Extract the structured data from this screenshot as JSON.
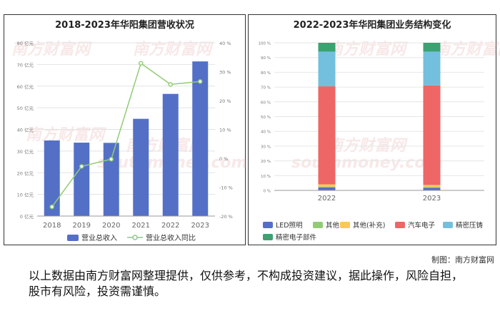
{
  "watermark": {
    "cn": "南方财富网",
    "en": "southmoney.com"
  },
  "credit": "制图：南方财富网",
  "disclaimer": "以上数据由南方财富网整理提供，仅供参考，不构成投资建议，据此操作，风险自担，股市有风险，投资需谨慎。",
  "chart_data": [
    {
      "type": "bar",
      "title": "2018-2023年华阳集团营收状况",
      "categories": [
        "2018",
        "2019",
        "2020",
        "2021",
        "2022",
        "2023"
      ],
      "y_tick_labels": [
        "0 亿元",
        "10 亿元",
        "20 亿元",
        "30 亿元",
        "40 亿元",
        "50 亿元",
        "60 亿元",
        "70 亿元",
        "80 亿元"
      ],
      "y2_tick_labels": [
        "-20 %",
        "-10 %",
        "0 %",
        "10 %",
        "20 %",
        "30 %",
        "40 %"
      ],
      "ylim": [
        0,
        80
      ],
      "y2lim": [
        -20,
        40
      ],
      "grid": true,
      "legend_position": "bottom",
      "series": [
        {
          "name": "营业总收入",
          "type": "bar",
          "color": "#5470c6",
          "values": [
            34.9,
            33.9,
            33.8,
            44.9,
            56.4,
            71.4
          ]
        },
        {
          "name": "营业总收入同比",
          "type": "line",
          "axis": "right",
          "color": "#91cc75",
          "values": [
            -16.8,
            -2.8,
            -0.3,
            32.9,
            25.6,
            26.6
          ]
        }
      ]
    },
    {
      "type": "bar",
      "stacked": true,
      "title": "2022-2023年华阳集团业务结构变化",
      "categories": [
        "2022",
        "2023"
      ],
      "y_tick_labels": [
        "0 %",
        "10 %",
        "20 %",
        "30 %",
        "40 %",
        "50 %",
        "60 %",
        "70 %",
        "80 %",
        "90 %",
        "100 %"
      ],
      "ylim": [
        0,
        100
      ],
      "grid": true,
      "legend_position": "bottom",
      "series": [
        {
          "name": "LED照明",
          "color": "#5470c6",
          "values": [
            2.0,
            1.8
          ]
        },
        {
          "name": "其他",
          "color": "#91cc75",
          "values": [
            0.6,
            0.5
          ]
        },
        {
          "name": "其他(补充)",
          "color": "#fac858",
          "values": [
            1.5,
            1.4
          ]
        },
        {
          "name": "汽车电子",
          "color": "#ee6666",
          "values": [
            66.4,
            67.4
          ]
        },
        {
          "name": "精密压铸",
          "color": "#73c0de",
          "values": [
            23.5,
            22.9
          ]
        },
        {
          "name": "精密电子部件",
          "color": "#3ba272",
          "values": [
            6.0,
            6.0
          ]
        }
      ]
    }
  ]
}
